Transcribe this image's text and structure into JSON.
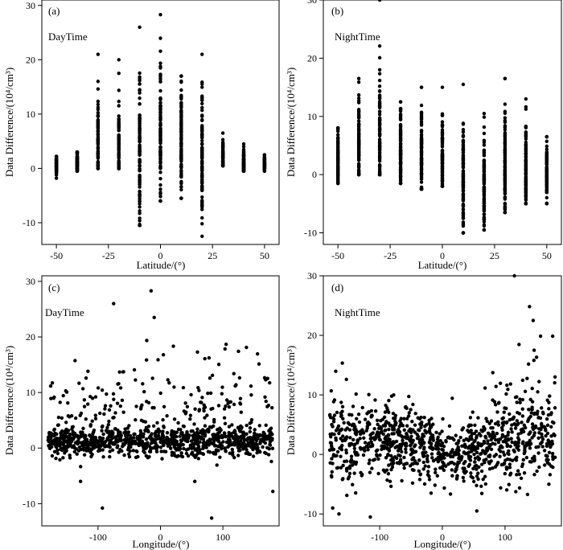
{
  "figure_description_labels": [
    "(a)",
    "(b)",
    "(c)",
    "(d)"
  ],
  "chart_data": [
    {
      "type": "scatter",
      "panel_label": "(a)",
      "annotation": "DayTime",
      "xlabel": "Latitude/(°)",
      "ylabel": "Data Difference/(10⁴/cm³)",
      "xlim": [
        -57,
        57
      ],
      "ylim": [
        -14,
        31
      ],
      "xticks": [
        -50,
        -25,
        0,
        25,
        50
      ],
      "xtick_labels": [
        "-50",
        "-25",
        "0",
        "25",
        "50"
      ],
      "yticks": [
        -10,
        0,
        10,
        20,
        30
      ],
      "ytick_labels": [
        "-10",
        "0",
        "10",
        "20",
        "30"
      ],
      "columns": [
        {
          "x": -50,
          "min": -1.8,
          "max": 2.2,
          "spread": 0.8,
          "mean": 0.8
        },
        {
          "x": -40,
          "min": -0.5,
          "max": 3.0,
          "spread": 1.0,
          "mean": 1.0
        },
        {
          "x": -30,
          "min": 0.0,
          "max": 21.0,
          "spread": 5.0,
          "mean": 2.5
        },
        {
          "x": -20,
          "min": 0.0,
          "max": 20.0,
          "spread": 5.5,
          "mean": 2.5
        },
        {
          "x": -10,
          "min": -10.5,
          "max": 26.0,
          "spread": 7.0,
          "mean": 3.0
        },
        {
          "x": 0,
          "min": -6.0,
          "max": 28.3,
          "spread": 7.0,
          "mean": 7.5
        },
        {
          "x": 10,
          "min": -5.5,
          "max": 17.0,
          "spread": 5.5,
          "mean": 4.5
        },
        {
          "x": 20,
          "min": -12.5,
          "max": 21.0,
          "spread": 6.0,
          "mean": 3.0
        },
        {
          "x": 30,
          "min": 0.5,
          "max": 6.5,
          "spread": 1.5,
          "mean": 1.5
        },
        {
          "x": 40,
          "min": -0.5,
          "max": 4.5,
          "spread": 1.2,
          "mean": 1.0
        },
        {
          "x": 50,
          "min": -0.5,
          "max": 2.5,
          "spread": 0.8,
          "mean": 0.8
        }
      ]
    },
    {
      "type": "scatter",
      "panel_label": "(b)",
      "annotation": "NightTime",
      "xlabel": "Latitude/(°)",
      "ylabel": "Data Difference/(10⁴/cm³)",
      "xlim": [
        -57,
        57
      ],
      "ylim": [
        -12,
        30
      ],
      "xticks": [
        -50,
        -25,
        0,
        25,
        50
      ],
      "xtick_labels": [
        "-50",
        "-25",
        "0",
        "25",
        "50"
      ],
      "yticks": [
        -10,
        0,
        10,
        20,
        30
      ],
      "ytick_labels": [
        "-10",
        "0",
        "10",
        "20",
        "30"
      ],
      "columns": [
        {
          "x": -50,
          "min": -1.5,
          "max": 8.0,
          "spread": 2.5,
          "mean": 2.0
        },
        {
          "x": -40,
          "min": 0.0,
          "max": 16.5,
          "spread": 4.0,
          "mean": 4.0
        },
        {
          "x": -30,
          "min": 0.0,
          "max": 30.0,
          "spread": 6.0,
          "mean": 4.5
        },
        {
          "x": -20,
          "min": -1.5,
          "max": 12.5,
          "spread": 4.0,
          "mean": 3.0
        },
        {
          "x": -10,
          "min": -2.5,
          "max": 15.0,
          "spread": 4.5,
          "mean": 3.0
        },
        {
          "x": 0,
          "min": -2.0,
          "max": 15.0,
          "spread": 3.5,
          "mean": 2.5
        },
        {
          "x": 10,
          "min": -10.0,
          "max": 15.5,
          "spread": 5.0,
          "mean": -0.5
        },
        {
          "x": 20,
          "min": -9.5,
          "max": 10.5,
          "spread": 4.5,
          "mean": -2.0
        },
        {
          "x": 30,
          "min": -6.5,
          "max": 16.5,
          "spread": 5.5,
          "mean": 1.0
        },
        {
          "x": 40,
          "min": -5.0,
          "max": 13.0,
          "spread": 4.5,
          "mean": 1.0
        },
        {
          "x": 50,
          "min": -5.0,
          "max": 6.5,
          "spread": 2.5,
          "mean": 0.5
        }
      ]
    },
    {
      "type": "scatter",
      "panel_label": "(c)",
      "annotation": "DayTime",
      "xlabel": "Longitude/(°)",
      "ylabel": "Data Difference/(10⁴/cm³)",
      "xlim": [
        -190,
        190
      ],
      "ylim": [
        -14,
        31
      ],
      "xticks": [
        -100,
        0,
        100
      ],
      "xtick_labels": [
        "-100",
        "0",
        "100"
      ],
      "yticks": [
        -10,
        0,
        10,
        20,
        30
      ],
      "ytick_labels": [
        "-10",
        "0",
        "10",
        "20",
        "30"
      ],
      "n_points": 1100,
      "baseline_mean": 1.2,
      "baseline_spread": 1.3,
      "outlier_points": [
        [
          -93,
          -10.8
        ],
        [
          -75,
          26
        ],
        [
          -15,
          28.3
        ],
        [
          -10,
          23.5
        ],
        [
          82,
          -12.6
        ],
        [
          180,
          -7.8
        ],
        [
          -128,
          -6.0
        ],
        [
          55,
          -6.0
        ]
      ]
    },
    {
      "type": "scatter",
      "panel_label": "(d)",
      "annotation": "NightTime",
      "xlabel": "Longitude/(°)",
      "ylabel": "Data Difference/(10⁴/cm³)",
      "xlim": [
        -190,
        190
      ],
      "ylim": [
        -12,
        30
      ],
      "xticks": [
        -100,
        0,
        100
      ],
      "xtick_labels": [
        "-100",
        "0",
        "100"
      ],
      "yticks": [
        -10,
        0,
        10,
        20,
        30
      ],
      "ytick_labels": [
        "-10",
        "0",
        "10",
        "20",
        "30"
      ],
      "n_points": 1100,
      "outlier_points": [
        [
          115,
          30
        ],
        [
          145,
          22.5
        ],
        [
          -165,
          -10
        ],
        [
          -115,
          -10.5
        ],
        [
          55,
          -9.5
        ],
        [
          -175,
          -9
        ],
        [
          -18,
          -6.5
        ],
        [
          170,
          -5
        ]
      ]
    }
  ],
  "colors": {
    "points": "#000000",
    "axes": "#000000",
    "background": "#ffffff"
  }
}
